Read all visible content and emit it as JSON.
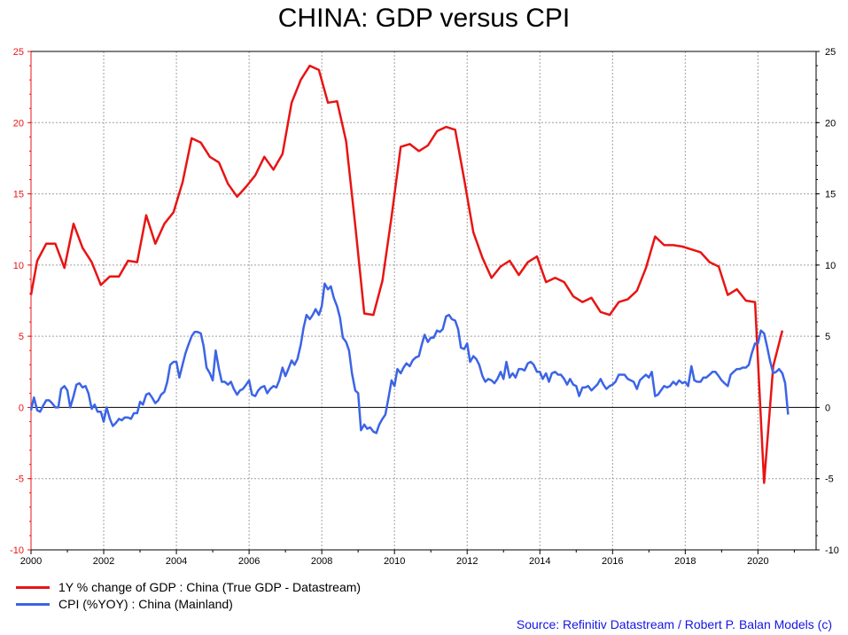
{
  "chart_data": {
    "type": "line",
    "title": "CHINA: GDP versus CPI",
    "source": "Source: Refinitiv Datastream / Robert P. Balan Models (c)",
    "xlim": [
      2000,
      2021.6
    ],
    "ylim": [
      -10,
      25
    ],
    "x_ticks": [
      2000,
      2002,
      2004,
      2006,
      2008,
      2010,
      2012,
      2014,
      2016,
      2018,
      2020
    ],
    "y_ticks_left": [
      -10,
      -5,
      0,
      5,
      10,
      15,
      20,
      25
    ],
    "y_ticks_right": [
      -10,
      -5,
      0,
      5,
      10,
      15,
      20,
      25
    ],
    "grid": true,
    "zero_line": true,
    "legend_position": "bottom-left",
    "colors": {
      "gdp": "#e81414",
      "cpi": "#3c64e6",
      "left_axis": "#e81414",
      "right_axis": "#000000",
      "source_text": "#1414e6"
    },
    "series": [
      {
        "name": "1Y % change of GDP : China (True GDP - Datastream)",
        "axis": "left",
        "x": [
          2000.0,
          2000.17,
          2000.42,
          2000.67,
          2000.92,
          2001.17,
          2001.42,
          2001.67,
          2001.92,
          2002.17,
          2002.42,
          2002.67,
          2002.92,
          2003.17,
          2003.42,
          2003.67,
          2003.92,
          2004.17,
          2004.42,
          2004.67,
          2004.92,
          2005.17,
          2005.42,
          2005.67,
          2005.92,
          2006.17,
          2006.42,
          2006.67,
          2006.92,
          2007.17,
          2007.42,
          2007.67,
          2007.92,
          2008.17,
          2008.42,
          2008.67,
          2008.92,
          2009.17,
          2009.42,
          2009.67,
          2009.92,
          2010.17,
          2010.42,
          2010.67,
          2010.92,
          2011.17,
          2011.42,
          2011.67,
          2011.92,
          2012.17,
          2012.42,
          2012.67,
          2012.92,
          2013.17,
          2013.42,
          2013.67,
          2013.92,
          2014.17,
          2014.42,
          2014.67,
          2014.92,
          2015.17,
          2015.42,
          2015.67,
          2015.92,
          2016.17,
          2016.42,
          2016.67,
          2016.92,
          2017.17,
          2017.42,
          2017.67,
          2017.92,
          2018.17,
          2018.42,
          2018.67,
          2018.92,
          2019.17,
          2019.42,
          2019.67,
          2019.92,
          2020.17,
          2020.42,
          2020.67
        ],
        "values": [
          7.9,
          10.3,
          11.5,
          11.5,
          9.8,
          12.9,
          11.2,
          10.2,
          8.6,
          9.2,
          9.2,
          10.3,
          10.2,
          13.5,
          11.5,
          12.9,
          13.7,
          15.8,
          18.9,
          18.6,
          17.6,
          17.2,
          15.7,
          14.8,
          15.5,
          16.3,
          17.6,
          16.7,
          17.8,
          21.4,
          23.0,
          24.0,
          23.7,
          21.4,
          21.5,
          18.7,
          12.8,
          6.6,
          6.5,
          8.9,
          13.4,
          18.3,
          18.5,
          18.0,
          18.4,
          19.4,
          19.7,
          19.5,
          16.0,
          12.3,
          10.5,
          9.1,
          9.9,
          10.3,
          9.3,
          10.2,
          10.6,
          8.8,
          9.1,
          8.8,
          7.8,
          7.4,
          7.7,
          6.7,
          6.5,
          7.4,
          7.6,
          8.2,
          9.8,
          12.0,
          11.4,
          11.4,
          11.3,
          11.1,
          10.9,
          10.2,
          9.9,
          7.9,
          8.3,
          7.5,
          7.4,
          -5.3,
          2.9,
          5.4
        ]
      },
      {
        "name": "CPI (%YOY) : China (Mainland)",
        "axis": "right",
        "x": [
          2000.0,
          2000.08,
          2000.17,
          2000.25,
          2000.33,
          2000.42,
          2000.5,
          2000.58,
          2000.67,
          2000.75,
          2000.83,
          2000.92,
          2001.0,
          2001.08,
          2001.17,
          2001.25,
          2001.33,
          2001.42,
          2001.5,
          2001.58,
          2001.67,
          2001.75,
          2001.83,
          2001.92,
          2002.0,
          2002.08,
          2002.17,
          2002.25,
          2002.33,
          2002.42,
          2002.5,
          2002.58,
          2002.67,
          2002.75,
          2002.83,
          2002.92,
          2003.0,
          2003.08,
          2003.17,
          2003.25,
          2003.33,
          2003.42,
          2003.5,
          2003.58,
          2003.67,
          2003.75,
          2003.83,
          2003.92,
          2004.0,
          2004.08,
          2004.17,
          2004.25,
          2004.33,
          2004.42,
          2004.5,
          2004.58,
          2004.67,
          2004.75,
          2004.83,
          2004.92,
          2005.0,
          2005.08,
          2005.17,
          2005.25,
          2005.33,
          2005.42,
          2005.5,
          2005.58,
          2005.67,
          2005.75,
          2005.83,
          2005.92,
          2006.0,
          2006.08,
          2006.17,
          2006.25,
          2006.33,
          2006.42,
          2006.5,
          2006.58,
          2006.67,
          2006.75,
          2006.83,
          2006.92,
          2007.0,
          2007.08,
          2007.17,
          2007.25,
          2007.33,
          2007.42,
          2007.5,
          2007.58,
          2007.67,
          2007.75,
          2007.83,
          2007.92,
          2008.0,
          2008.08,
          2008.17,
          2008.25,
          2008.33,
          2008.42,
          2008.5,
          2008.58,
          2008.67,
          2008.75,
          2008.83,
          2008.92,
          2009.0,
          2009.08,
          2009.17,
          2009.25,
          2009.33,
          2009.42,
          2009.5,
          2009.58,
          2009.67,
          2009.75,
          2009.83,
          2009.92,
          2010.0,
          2010.08,
          2010.17,
          2010.25,
          2010.33,
          2010.42,
          2010.5,
          2010.58,
          2010.67,
          2010.75,
          2010.83,
          2010.92,
          2011.0,
          2011.08,
          2011.17,
          2011.25,
          2011.33,
          2011.42,
          2011.5,
          2011.58,
          2011.67,
          2011.75,
          2011.83,
          2011.92,
          2012.0,
          2012.08,
          2012.17,
          2012.25,
          2012.33,
          2012.42,
          2012.5,
          2012.58,
          2012.67,
          2012.75,
          2012.83,
          2012.92,
          2013.0,
          2013.08,
          2013.17,
          2013.25,
          2013.33,
          2013.42,
          2013.5,
          2013.58,
          2013.67,
          2013.75,
          2013.83,
          2013.92,
          2014.0,
          2014.08,
          2014.17,
          2014.25,
          2014.33,
          2014.42,
          2014.5,
          2014.58,
          2014.67,
          2014.75,
          2014.83,
          2014.92,
          2015.0,
          2015.08,
          2015.17,
          2015.25,
          2015.33,
          2015.42,
          2015.5,
          2015.58,
          2015.67,
          2015.75,
          2015.83,
          2015.92,
          2016.0,
          2016.08,
          2016.17,
          2016.25,
          2016.33,
          2016.42,
          2016.5,
          2016.58,
          2016.67,
          2016.75,
          2016.83,
          2016.92,
          2017.0,
          2017.08,
          2017.17,
          2017.25,
          2017.33,
          2017.42,
          2017.5,
          2017.58,
          2017.67,
          2017.75,
          2017.83,
          2017.92,
          2018.0,
          2018.08,
          2018.17,
          2018.25,
          2018.33,
          2018.42,
          2018.5,
          2018.58,
          2018.67,
          2018.75,
          2018.83,
          2018.92,
          2019.0,
          2019.08,
          2019.17,
          2019.25,
          2019.33,
          2019.42,
          2019.5,
          2019.58,
          2019.67,
          2019.75,
          2019.83,
          2019.92,
          2020.0,
          2020.08,
          2020.17,
          2020.25,
          2020.33,
          2020.42,
          2020.5,
          2020.58,
          2020.67,
          2020.75,
          2020.83
        ],
        "values": [
          -0.2,
          0.7,
          -0.2,
          -0.3,
          0.1,
          0.5,
          0.5,
          0.3,
          0.0,
          0.0,
          1.3,
          1.5,
          1.2,
          0.0,
          0.8,
          1.6,
          1.7,
          1.4,
          1.5,
          1.0,
          -0.1,
          0.2,
          -0.3,
          -0.3,
          -1.0,
          0.0,
          -0.8,
          -1.3,
          -1.1,
          -0.8,
          -0.9,
          -0.7,
          -0.7,
          -0.8,
          -0.4,
          -0.4,
          0.4,
          0.2,
          0.9,
          1.0,
          0.7,
          0.3,
          0.5,
          0.9,
          1.1,
          1.8,
          3.0,
          3.2,
          3.2,
          2.1,
          3.0,
          3.8,
          4.4,
          5.0,
          5.3,
          5.3,
          5.2,
          4.3,
          2.8,
          2.4,
          1.9,
          4.0,
          2.7,
          1.8,
          1.8,
          1.6,
          1.8,
          1.3,
          0.9,
          1.2,
          1.3,
          1.6,
          1.9,
          0.9,
          0.8,
          1.2,
          1.4,
          1.5,
          1.0,
          1.3,
          1.5,
          1.4,
          1.9,
          2.8,
          2.2,
          2.7,
          3.3,
          3.0,
          3.4,
          4.4,
          5.6,
          6.5,
          6.2,
          6.5,
          6.9,
          6.5,
          7.1,
          8.7,
          8.3,
          8.5,
          7.7,
          7.1,
          6.3,
          4.9,
          4.6,
          4.0,
          2.4,
          1.2,
          1.0,
          -1.6,
          -1.2,
          -1.5,
          -1.4,
          -1.7,
          -1.8,
          -1.2,
          -0.8,
          -0.5,
          0.6,
          1.9,
          1.5,
          2.7,
          2.4,
          2.8,
          3.1,
          2.9,
          3.3,
          3.5,
          3.6,
          4.4,
          5.1,
          4.6,
          4.9,
          4.9,
          5.4,
          5.3,
          5.5,
          6.4,
          6.5,
          6.2,
          6.1,
          5.5,
          4.2,
          4.1,
          4.5,
          3.2,
          3.6,
          3.4,
          3.0,
          2.2,
          1.8,
          2.0,
          1.9,
          1.7,
          2.0,
          2.5,
          2.0,
          3.2,
          2.1,
          2.4,
          2.1,
          2.7,
          2.7,
          2.6,
          3.1,
          3.2,
          3.0,
          2.5,
          2.5,
          2.0,
          2.4,
          1.8,
          2.4,
          2.5,
          2.3,
          2.3,
          2.0,
          1.6,
          2.0,
          1.6,
          1.5,
          0.8,
          1.4,
          1.4,
          1.5,
          1.2,
          1.4,
          1.6,
          2.0,
          1.6,
          1.3,
          1.5,
          1.6,
          1.8,
          2.3,
          2.3,
          2.3,
          2.0,
          1.9,
          1.8,
          1.3,
          1.9,
          2.1,
          2.3,
          2.1,
          2.5,
          0.8,
          0.9,
          1.2,
          1.5,
          1.4,
          1.5,
          1.8,
          1.6,
          1.9,
          1.7,
          1.8,
          1.5,
          2.9,
          1.9,
          1.8,
          1.8,
          2.1,
          2.1,
          2.3,
          2.5,
          2.5,
          2.2,
          1.9,
          1.7,
          1.5,
          2.3,
          2.5,
          2.7,
          2.7,
          2.8,
          2.8,
          3.0,
          3.8,
          4.5,
          4.5,
          5.4,
          5.2,
          4.3,
          3.3,
          2.4,
          2.5,
          2.7,
          2.4,
          1.7,
          -0.5
        ]
      }
    ]
  }
}
